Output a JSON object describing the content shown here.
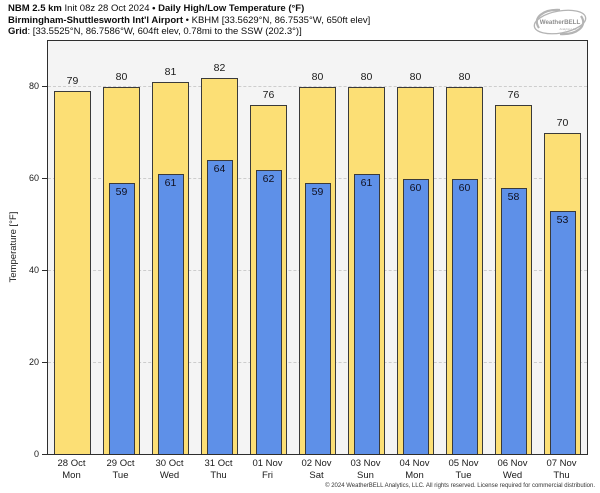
{
  "header": {
    "line1": {
      "bold1": "NBM 2.5 km",
      "regular": " Init 08z 28 Oct 2024 ",
      "bold2": "• Daily High/Low Temperature (°F)"
    },
    "line2": {
      "bold": "Birmingham-Shuttlesworth Int'l Airport",
      "regular": " • KBHM [33.5629°N, 86.7535°W, 650ft elev]"
    },
    "line3": {
      "bold": "Grid",
      "regular": ": [33.5525°N, 86.7586°W, 604ft elev, 0.78mi to the SSW (202.3°)]"
    }
  },
  "logo": {
    "text": "WeatherBELL",
    "subtext": "Analytics LLC"
  },
  "footer": {
    "text": "© 2024 WeatherBELL Analytics, LLC. All rights reserved. License required for commercial distribution."
  },
  "chart_data": {
    "type": "bar",
    "title": "NBM 2.5 km Init 08z 28 Oct 2024 • Daily High/Low Temperature (°F)",
    "categories": [
      {
        "date": "28 Oct",
        "day": "Mon"
      },
      {
        "date": "29 Oct",
        "day": "Tue"
      },
      {
        "date": "30 Oct",
        "day": "Wed"
      },
      {
        "date": "31 Oct",
        "day": "Thu"
      },
      {
        "date": "01 Nov",
        "day": "Fri"
      },
      {
        "date": "02 Nov",
        "day": "Sat"
      },
      {
        "date": "03 Nov",
        "day": "Sun"
      },
      {
        "date": "04 Nov",
        "day": "Mon"
      },
      {
        "date": "05 Nov",
        "day": "Tue"
      },
      {
        "date": "06 Nov",
        "day": "Wed"
      },
      {
        "date": "07 Nov",
        "day": "Thu"
      }
    ],
    "series": [
      {
        "name": "High",
        "color": "#fcdf75",
        "values": [
          79,
          80,
          81,
          82,
          76,
          80,
          80,
          80,
          80,
          76,
          70
        ]
      },
      {
        "name": "Low",
        "color": "#5e90e8",
        "values": [
          null,
          59,
          61,
          64,
          62,
          59,
          61,
          60,
          60,
          58,
          53
        ]
      }
    ],
    "xlabel": "",
    "ylabel": "Temperature [°F]",
    "ylim": [
      0,
      90
    ],
    "yticks": [
      0,
      20,
      40,
      60,
      80
    ],
    "grid": "horizontal-dashed",
    "plot_background": "#f4f4f4",
    "legend": "none"
  }
}
